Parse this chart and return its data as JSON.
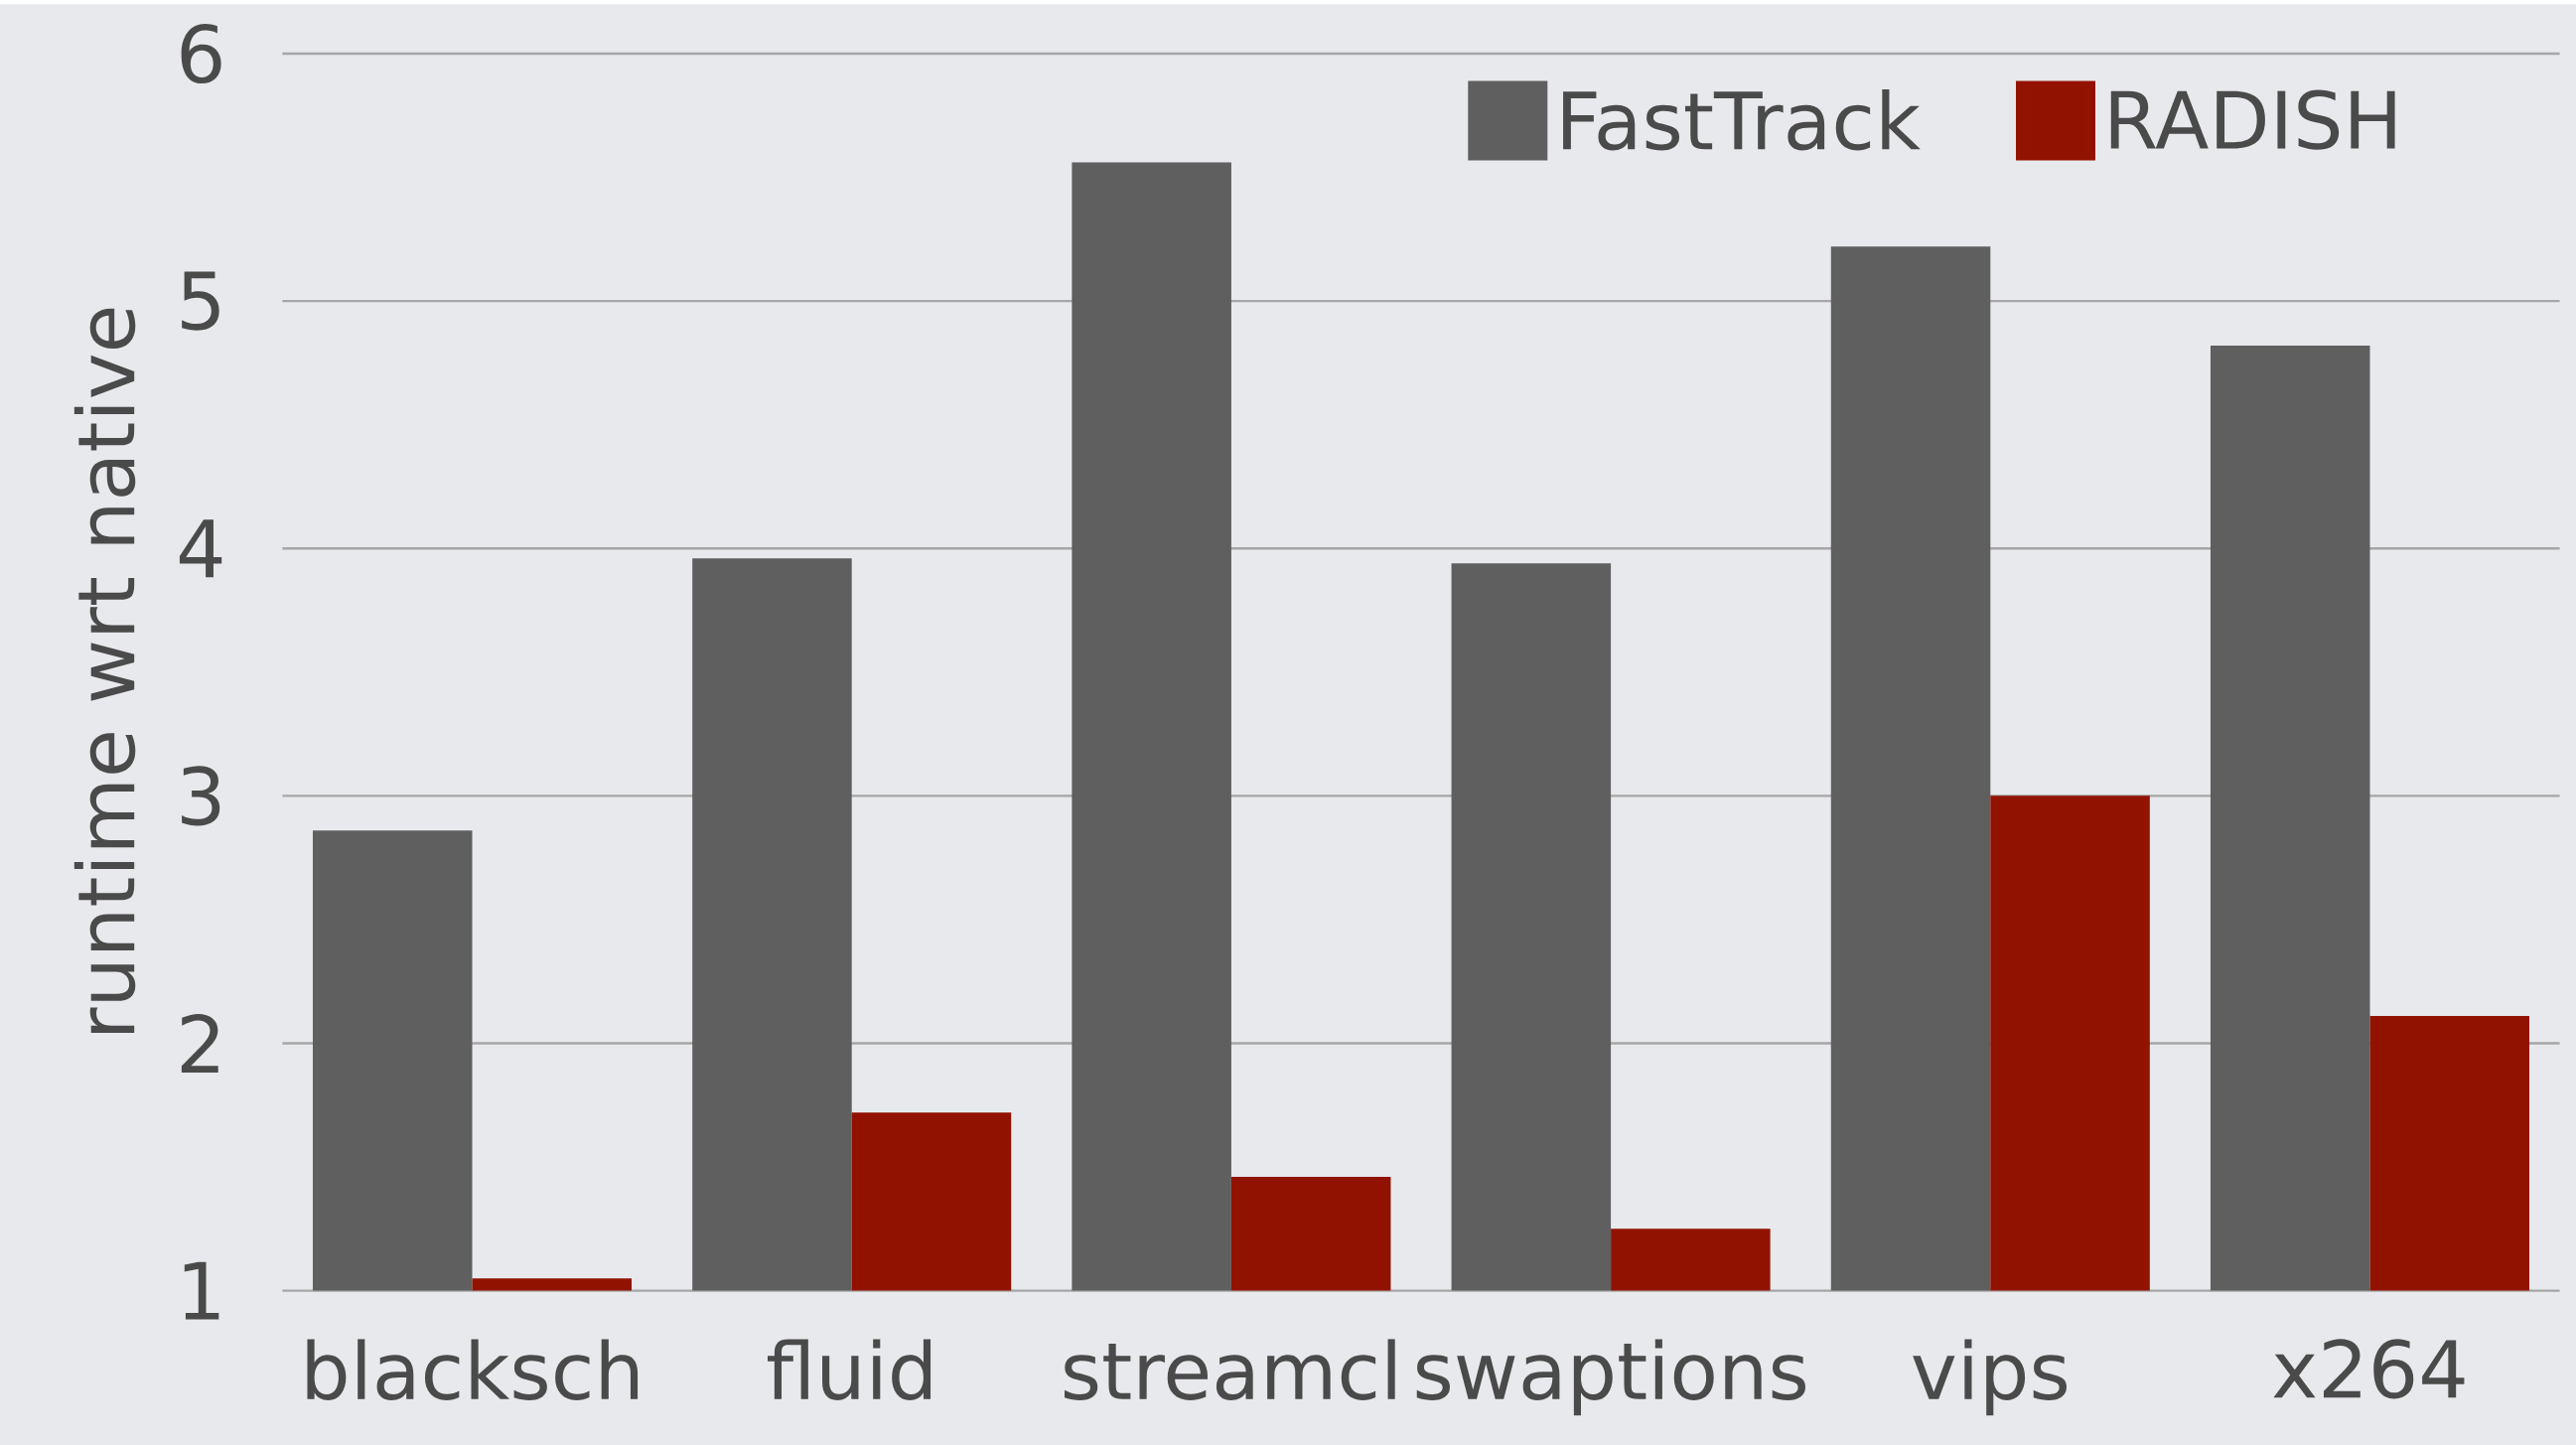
{
  "chart_data": {
    "type": "bar",
    "ylabel": "runtime wrt native",
    "categories": [
      "blacksch",
      "fluid",
      "streamcl",
      "swaptions",
      "vips",
      "x264"
    ],
    "series": [
      {
        "name": "FastTrack",
        "color": "#5f5f5f",
        "values": [
          2.86,
          3.96,
          5.56,
          3.94,
          5.22,
          4.82
        ]
      },
      {
        "name": "RADISH",
        "color": "#921200",
        "values": [
          1.05,
          1.72,
          1.46,
          1.25,
          3.0,
          2.11
        ]
      }
    ],
    "ylim": [
      1,
      6
    ],
    "yticks": [
      1,
      2,
      3,
      4,
      5,
      6
    ],
    "grid": "y",
    "legend": "top right"
  }
}
